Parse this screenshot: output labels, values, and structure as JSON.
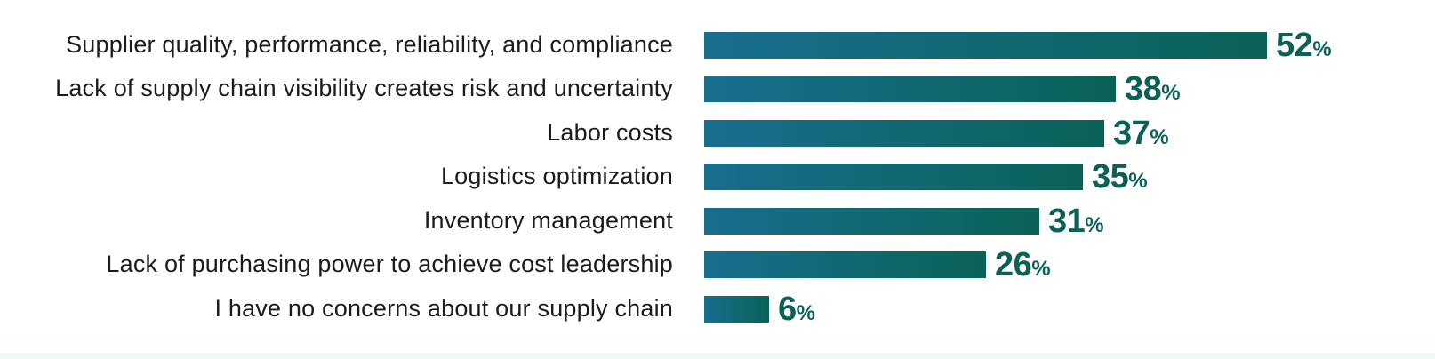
{
  "chart_data": {
    "type": "bar",
    "orientation": "horizontal",
    "title": "",
    "xlabel": "",
    "ylabel": "",
    "value_suffix": "%",
    "axis_visible": false,
    "grid": false,
    "legend": null,
    "categories": [
      "Supplier quality, performance, reliability, and compliance",
      "Lack of supply chain visibility creates risk and uncertainty",
      "Labor costs",
      "Logistics optimization",
      "Inventory management",
      "Lack of purchasing power to achieve cost leadership",
      "I have no concerns about our supply chain"
    ],
    "values": [
      52,
      38,
      37,
      35,
      31,
      26,
      6
    ],
    "value_labels": [
      "52%",
      "38%",
      "37%",
      "35%",
      "31%",
      "26%",
      "6%"
    ],
    "colors": {
      "bar_gradient_start": "#186e8e",
      "bar_gradient_end": "#0a6257",
      "value_text": "#0c6156",
      "category_text": "#1a1b1c",
      "background": "#ffffff",
      "bottom_band": "#f0f7f7"
    }
  }
}
